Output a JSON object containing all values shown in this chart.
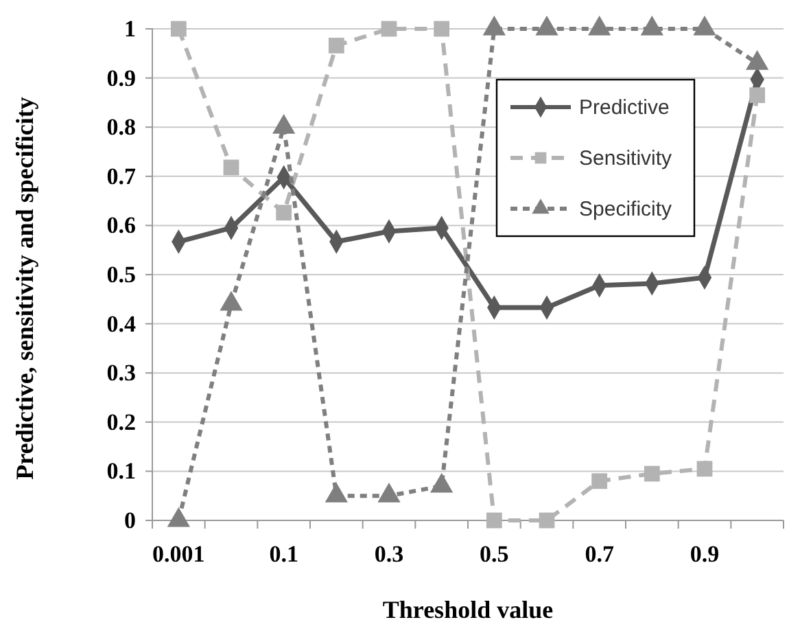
{
  "chart_data": {
    "type": "line",
    "xlabel": "Threshold value",
    "ylabel": "Predictive, sensitivity and specificity",
    "categories": [
      "0.001",
      null,
      "0.1",
      null,
      "0.3",
      null,
      "0.5",
      null,
      "0.7",
      null,
      "0.9",
      null
    ],
    "series": [
      {
        "name": "Predictive",
        "color": "#595959",
        "marker": "diamond",
        "line_style": "solid",
        "values": [
          0.567,
          0.595,
          0.698,
          0.567,
          0.588,
          0.595,
          0.433,
          0.433,
          0.478,
          0.482,
          0.494,
          0.897
        ]
      },
      {
        "name": "Sensitivity",
        "color": "#b3b3b3",
        "marker": "square",
        "line_style": "dashed",
        "values": [
          1,
          0.718,
          0.626,
          0.966,
          1,
          1,
          0,
          0,
          0.08,
          0.095,
          0.105,
          0.865
        ]
      },
      {
        "name": "Specificity",
        "color": "#7f7f7f",
        "marker": "triangle",
        "line_style": "dotted",
        "values": [
          0,
          0.44,
          0.8,
          0.05,
          0.05,
          0.07,
          1,
          1,
          1,
          1,
          1,
          0.93
        ]
      }
    ],
    "ylim": [
      0,
      1
    ],
    "yticks": [
      0,
      0.1,
      0.2,
      0.3,
      0.4,
      0.5,
      0.6,
      0.7,
      0.8,
      0.9,
      1
    ],
    "grid": "y",
    "legend": "top right"
  }
}
